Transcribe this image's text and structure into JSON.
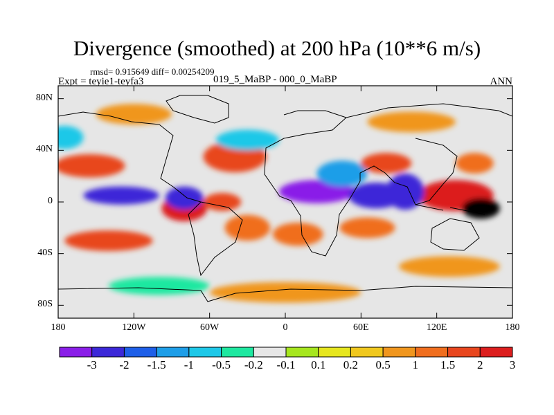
{
  "chart_data": {
    "type": "heatmap",
    "title": "Divergence (smoothed) at 200 hPa (10**6 m/s)",
    "subtitle_left": "Expt = teyie1-teyfa3",
    "subtitle_center": "019_5_MaBP - 000_0_MaBP",
    "subtitle_right": "ANN",
    "stats": "rmsd= 0.915649 diff= 0.00254209",
    "x_range": [
      -180,
      180
    ],
    "y_range": [
      -90,
      90
    ],
    "x_ticks": [
      {
        "value": -180,
        "label": "180"
      },
      {
        "value": -120,
        "label": "120W"
      },
      {
        "value": -60,
        "label": "60W"
      },
      {
        "value": 0,
        "label": "0"
      },
      {
        "value": 60,
        "label": "60E"
      },
      {
        "value": 120,
        "label": "120E"
      },
      {
        "value": 180,
        "label": "180"
      }
    ],
    "y_ticks": [
      {
        "value": 80,
        "label": "80N"
      },
      {
        "value": 40,
        "label": "40N"
      },
      {
        "value": 0,
        "label": "0"
      },
      {
        "value": -40,
        "label": "40S"
      },
      {
        "value": -80,
        "label": "80S"
      }
    ],
    "colorbar": {
      "colors": [
        "#8a1ee8",
        "#3c28d8",
        "#1e5fe8",
        "#1e9ee8",
        "#1ec8e8",
        "#1ee8a0",
        "#e6e6e6",
        "#a6e61e",
        "#e6e61e",
        "#f0c81e",
        "#f0961e",
        "#f06e1e",
        "#e8461e",
        "#dc1e1e"
      ],
      "labels": [
        "-3",
        "-2",
        "-1.5",
        "-1",
        "-0.5",
        "-0.2",
        "-0.1",
        "0.1",
        "0.2",
        "0.5",
        "1",
        "1.5",
        "2",
        "3"
      ]
    },
    "field_blobs": [
      {
        "lon": -130,
        "lat": 5,
        "rlon": 30,
        "rlat": 7,
        "value": -2.6
      },
      {
        "lon": -80,
        "lat": 3,
        "rlon": 15,
        "rlat": 9,
        "value": -2.2
      },
      {
        "lon": 25,
        "lat": 8,
        "rlon": 30,
        "rlat": 9,
        "value": -3.2
      },
      {
        "lon": 72,
        "lat": 5,
        "rlon": 22,
        "rlat": 10,
        "value": -3.0
      },
      {
        "lon": 95,
        "lat": 8,
        "rlon": 15,
        "rlat": 14,
        "value": -2.5
      },
      {
        "lon": 45,
        "lat": 22,
        "rlon": 20,
        "rlat": 10,
        "value": -1.5
      },
      {
        "lon": -175,
        "lat": 50,
        "rlon": 15,
        "rlat": 9,
        "value": -0.8
      },
      {
        "lon": -30,
        "lat": 48,
        "rlon": 25,
        "rlat": 8,
        "value": -0.6
      },
      {
        "lon": -140,
        "lat": -30,
        "rlon": 35,
        "rlat": 8,
        "value": 1.5
      },
      {
        "lon": -155,
        "lat": 28,
        "rlon": 28,
        "rlat": 9,
        "value": 1.5
      },
      {
        "lon": -40,
        "lat": 35,
        "rlon": 25,
        "rlat": 12,
        "value": 1.6
      },
      {
        "lon": -80,
        "lat": -5,
        "rlon": 18,
        "rlat": 10,
        "value": 2.2
      },
      {
        "lon": -50,
        "lat": 0,
        "rlon": 15,
        "rlat": 7,
        "value": 1.8
      },
      {
        "lon": -30,
        "lat": -20,
        "rlon": 18,
        "rlat": 10,
        "value": 1.2
      },
      {
        "lon": 10,
        "lat": -25,
        "rlon": 20,
        "rlat": 9,
        "value": 1.3
      },
      {
        "lon": 65,
        "lat": -20,
        "rlon": 22,
        "rlat": 8,
        "value": 1.4
      },
      {
        "lon": 80,
        "lat": 30,
        "rlon": 20,
        "rlat": 8,
        "value": 1.6
      },
      {
        "lon": 135,
        "lat": 5,
        "rlon": 30,
        "rlat": 12,
        "value": 2.6
      },
      {
        "lon": 155,
        "lat": -5,
        "rlon": 15,
        "rlat": 8,
        "value": 3.2
      },
      {
        "lon": 150,
        "lat": 30,
        "rlon": 15,
        "rlat": 8,
        "value": 1.0
      },
      {
        "lon": -120,
        "lat": 68,
        "rlon": 30,
        "rlat": 8,
        "value": 0.8
      },
      {
        "lon": 100,
        "lat": 62,
        "rlon": 35,
        "rlat": 8,
        "value": 0.6
      },
      {
        "lon": 0,
        "lat": -70,
        "rlon": 60,
        "rlat": 8,
        "value": 0.5
      },
      {
        "lon": 130,
        "lat": -50,
        "rlon": 40,
        "rlat": 8,
        "value": 0.6
      },
      {
        "lon": -100,
        "lat": -65,
        "rlon": 40,
        "rlat": 7,
        "value": -0.3
      }
    ]
  }
}
